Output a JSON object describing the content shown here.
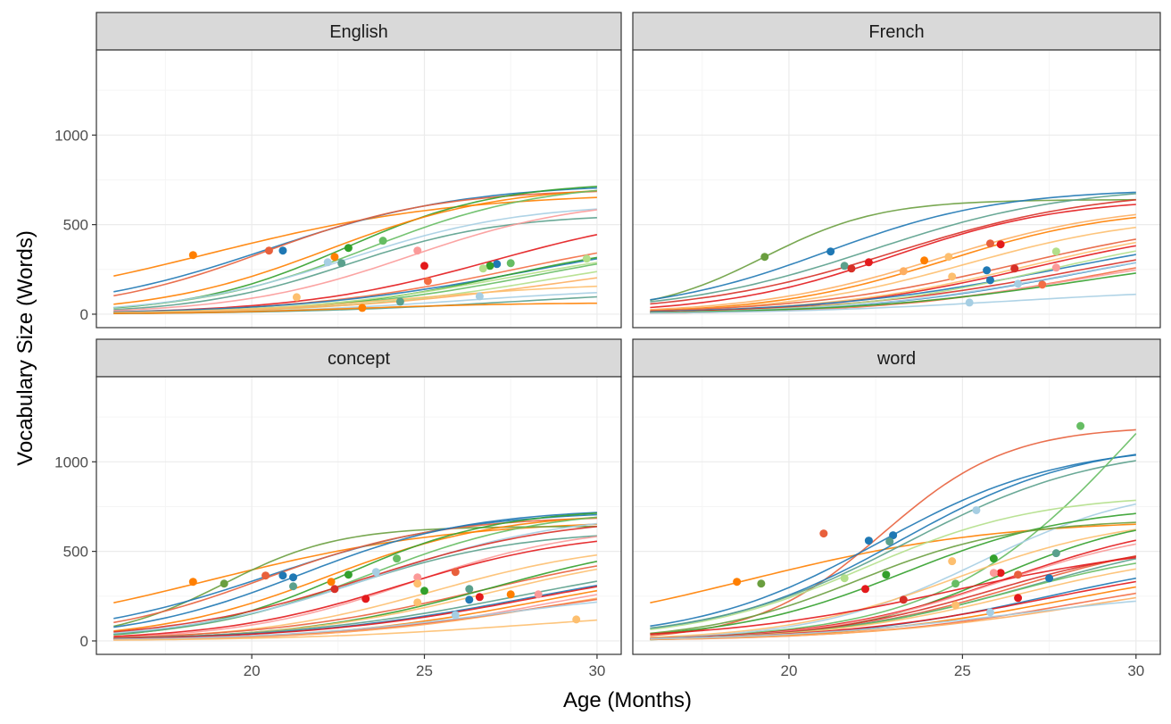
{
  "chart_data": {
    "type": "line",
    "xlabel": "Age (Months)",
    "ylabel": "Vocabulary Size (Words)",
    "xlim": [
      15.5,
      30.7
    ],
    "ylim": [
      -75,
      1475
    ],
    "xticks": [
      20,
      25,
      30
    ],
    "yticks": [
      0,
      500,
      1000
    ],
    "grid": true,
    "legend": "none",
    "colors": {
      "strip_background": "#d9d9d9",
      "panel_border": "#333333",
      "grid_major": "#ebebeb",
      "grid_minor": "#f5f5f5",
      "palette": [
        "#1f78b4",
        "#33a02c",
        "#e31a1c",
        "#ff7f00",
        "#6a9e3f",
        "#e8603c",
        "#a6cee3",
        "#b2df8a",
        "#fb9a99",
        "#fdbf6f",
        "#5aa08c",
        "#f46d43",
        "#74add1",
        "#66bd63",
        "#d73027",
        "#fdae61"
      ]
    },
    "panels": [
      {
        "strip": "English",
        "curves": [
          {
            "max": 680,
            "mid": 18.8,
            "rate": 0.28,
            "point": [
              18.3,
              330
            ],
            "color": 3
          },
          {
            "max": 730,
            "mid": 20.5,
            "rate": 0.35,
            "point": [
              20.9,
              355
            ],
            "color": 0
          },
          {
            "max": 700,
            "mid": 20.4,
            "rate": 0.4,
            "point": [
              20.5,
              355
            ],
            "color": 5
          },
          {
            "max": 740,
            "mid": 22.7,
            "rate": 0.45,
            "point": [
              22.8,
              370
            ],
            "color": 1
          },
          {
            "max": 720,
            "mid": 22.2,
            "rate": 0.4,
            "point": [
              22.4,
              320
            ],
            "color": 3
          },
          {
            "max": 740,
            "mid": 23.4,
            "rate": 0.4,
            "point": [
              23.8,
              410
            ],
            "color": 13
          },
          {
            "max": 620,
            "mid": 22.8,
            "rate": 0.4,
            "point": [
              22.2,
              290
            ],
            "color": 6
          },
          {
            "max": 560,
            "mid": 22.8,
            "rate": 0.45,
            "point": [
              22.6,
              285
            ],
            "color": 10
          },
          {
            "max": 650,
            "mid": 24.6,
            "rate": 0.4,
            "point": [
              24.8,
              355
            ],
            "color": 8
          },
          {
            "max": 600,
            "mid": 27.0,
            "rate": 0.35,
            "point": [
              25.0,
              270
            ],
            "color": 2
          },
          {
            "max": 500,
            "mid": 27.6,
            "rate": 0.32,
            "point": [
              25.1,
              185
            ],
            "color": 11
          },
          {
            "max": 480,
            "mid": 28.0,
            "rate": 0.3,
            "point": [
              27.1,
              280
            ],
            "color": 0
          },
          {
            "max": 430,
            "mid": 27.3,
            "rate": 0.38,
            "point": [
              26.9,
              270
            ],
            "color": 1
          },
          {
            "max": 420,
            "mid": 27.6,
            "rate": 0.33,
            "point": [
              26.7,
              255
            ],
            "color": 7
          },
          {
            "max": 440,
            "mid": 28.3,
            "rate": 0.33,
            "point": [
              27.5,
              285
            ],
            "color": 13
          },
          {
            "max": 400,
            "mid": 28.8,
            "rate": 0.32,
            "point": [
              29.7,
              310
            ],
            "color": 7
          },
          {
            "max": 380,
            "mid": 29.5,
            "rate": 0.28,
            "point": null,
            "color": 15
          },
          {
            "max": 180,
            "mid": 24.7,
            "rate": 0.35,
            "point": [
              21.3,
              95
            ],
            "color": 9
          },
          {
            "max": 150,
            "mid": 26.0,
            "rate": 0.35,
            "point": [
              26.6,
              100
            ],
            "color": 6
          },
          {
            "max": 150,
            "mid": 28.0,
            "rate": 0.3,
            "point": [
              24.3,
              70
            ],
            "color": 10
          },
          {
            "max": 65,
            "mid": 23.0,
            "rate": 0.4,
            "point": [
              23.2,
              35
            ],
            "color": 3
          }
        ]
      },
      {
        "strip": "French",
        "curves": [
          {
            "max": 640,
            "mid": 19.3,
            "rate": 0.6,
            "point": [
              19.3,
              320
            ],
            "color": 4
          },
          {
            "max": 700,
            "mid": 21.1,
            "rate": 0.4,
            "point": [
              21.2,
              350
            ],
            "color": 0
          },
          {
            "max": 720,
            "mid": 22.4,
            "rate": 0.35,
            "point": [
              21.6,
              270
            ],
            "color": 10
          },
          {
            "max": 700,
            "mid": 23.1,
            "rate": 0.34,
            "point": [
              21.8,
              255
            ],
            "color": 14
          },
          {
            "max": 650,
            "mid": 23.0,
            "rate": 0.4,
            "point": [
              22.3,
              290
            ],
            "color": 2
          },
          {
            "max": 620,
            "mid": 24.3,
            "rate": 0.38,
            "point": [
              23.3,
              240
            ],
            "color": 15
          },
          {
            "max": 600,
            "mid": 24.5,
            "rate": 0.4,
            "point": [
              23.9,
              300
            ],
            "color": 3
          },
          {
            "max": 560,
            "mid": 25.1,
            "rate": 0.38,
            "point": [
              24.6,
              320
            ],
            "color": 9
          },
          {
            "max": 560,
            "mid": 26.6,
            "rate": 0.32,
            "point": [
              25.8,
              395
            ],
            "color": 5
          },
          {
            "max": 520,
            "mid": 27.0,
            "rate": 0.34,
            "point": [
              26.1,
              390
            ],
            "color": 2
          },
          {
            "max": 540,
            "mid": 26.9,
            "rate": 0.34,
            "point": [
              24.7,
              210
            ],
            "color": 9
          },
          {
            "max": 500,
            "mid": 27.7,
            "rate": 0.3,
            "point": [
              25.7,
              245
            ],
            "color": 0
          },
          {
            "max": 480,
            "mid": 28.2,
            "rate": 0.3,
            "point": [
              26.5,
              255
            ],
            "color": 14
          },
          {
            "max": 500,
            "mid": 27.5,
            "rate": 0.35,
            "point": [
              27.7,
              350
            ],
            "color": 7
          },
          {
            "max": 460,
            "mid": 28.4,
            "rate": 0.32,
            "point": [
              25.8,
              190
            ],
            "color": 0
          },
          {
            "max": 450,
            "mid": 28.2,
            "rate": 0.32,
            "point": [
              26.6,
              170
            ],
            "color": 6
          },
          {
            "max": 420,
            "mid": 28.6,
            "rate": 0.34,
            "point": [
              27.3,
              165
            ],
            "color": 11
          },
          {
            "max": 400,
            "mid": 28.5,
            "rate": 0.32,
            "point": [
              27.7,
              260
            ],
            "color": 8
          },
          {
            "max": 380,
            "mid": 28.6,
            "rate": 0.3,
            "point": null,
            "color": 1
          },
          {
            "max": 150,
            "mid": 26.5,
            "rate": 0.3,
            "point": [
              25.2,
              65
            ],
            "color": 6
          }
        ]
      },
      {
        "strip": "concept",
        "curves": [
          {
            "max": 680,
            "mid": 18.8,
            "rate": 0.28,
            "point": [
              18.3,
              330
            ],
            "color": 3
          },
          {
            "max": 640,
            "mid": 19.2,
            "rate": 0.6,
            "point": [
              19.2,
              320
            ],
            "color": 4
          },
          {
            "max": 730,
            "mid": 20.5,
            "rate": 0.35,
            "point": [
              20.9,
              365
            ],
            "color": 0
          },
          {
            "max": 700,
            "mid": 20.4,
            "rate": 0.4,
            "point": [
              20.4,
              365
            ],
            "color": 5
          },
          {
            "max": 740,
            "mid": 21.4,
            "rate": 0.4,
            "point": [
              21.2,
              355
            ],
            "color": 0
          },
          {
            "max": 720,
            "mid": 22.2,
            "rate": 0.4,
            "point": [
              22.3,
              330
            ],
            "color": 3
          },
          {
            "max": 740,
            "mid": 22.7,
            "rate": 0.45,
            "point": [
              22.8,
              370
            ],
            "color": 1
          },
          {
            "max": 740,
            "mid": 23.4,
            "rate": 0.4,
            "point": [
              24.2,
              460
            ],
            "color": 13
          },
          {
            "max": 620,
            "mid": 22.8,
            "rate": 0.4,
            "point": [
              21.2,
              305
            ],
            "color": 10
          },
          {
            "max": 720,
            "mid": 23.6,
            "rate": 0.36,
            "point": [
              23.6,
              385
            ],
            "color": 6
          },
          {
            "max": 700,
            "mid": 23.3,
            "rate": 0.35,
            "point": [
              22.4,
              290
            ],
            "color": 14
          },
          {
            "max": 650,
            "mid": 24.6,
            "rate": 0.4,
            "point": [
              24.8,
              355
            ],
            "color": 8
          },
          {
            "max": 620,
            "mid": 24.3,
            "rate": 0.38,
            "point": [
              23.3,
              235
            ],
            "color": 2
          },
          {
            "max": 560,
            "mid": 25.3,
            "rate": 0.38,
            "point": [
              24.8,
              320
            ],
            "color": 9
          },
          {
            "max": 560,
            "mid": 26.6,
            "rate": 0.32,
            "point": [
              25.9,
              385
            ],
            "color": 5
          },
          {
            "max": 600,
            "mid": 27.0,
            "rate": 0.35,
            "point": [
              25.0,
              280
            ],
            "color": 1
          },
          {
            "max": 540,
            "mid": 26.9,
            "rate": 0.34,
            "point": [
              24.8,
              215
            ],
            "color": 9
          },
          {
            "max": 500,
            "mid": 27.7,
            "rate": 0.3,
            "point": [
              26.3,
              290
            ],
            "color": 10
          },
          {
            "max": 480,
            "mid": 28.0,
            "rate": 0.3,
            "point": [
              26.3,
              230
            ],
            "color": 0
          },
          {
            "max": 480,
            "mid": 28.2,
            "rate": 0.3,
            "point": [
              26.6,
              245
            ],
            "color": 2
          },
          {
            "max": 440,
            "mid": 28.3,
            "rate": 0.33,
            "point": [
              27.5,
              260
            ],
            "color": 3
          },
          {
            "max": 420,
            "mid": 28.6,
            "rate": 0.34,
            "point": [
              28.3,
              260
            ],
            "color": 8
          },
          {
            "max": 400,
            "mid": 28.8,
            "rate": 0.32,
            "point": null,
            "color": 15
          },
          {
            "max": 380,
            "mid": 28.5,
            "rate": 0.3,
            "point": null,
            "color": 11
          },
          {
            "max": 300,
            "mid": 27.0,
            "rate": 0.32,
            "point": [
              25.9,
              145
            ],
            "color": 6
          },
          {
            "max": 180,
            "mid": 28.0,
            "rate": 0.3,
            "point": [
              29.4,
              120
            ],
            "color": 9
          }
        ]
      },
      {
        "strip": "word",
        "curves": [
          {
            "max": 680,
            "mid": 18.8,
            "rate": 0.28,
            "point": [
              18.5,
              330
            ],
            "color": 3
          },
          {
            "max": 1200,
            "mid": 22.7,
            "rate": 0.55,
            "point": [
              21.0,
              600
            ],
            "color": 5
          },
          {
            "max": 1100,
            "mid": 22.6,
            "rate": 0.38,
            "point": [
              22.3,
              560
            ],
            "color": 0
          },
          {
            "max": 1120,
            "mid": 23.2,
            "rate": 0.38,
            "point": [
              23.0,
              590
            ],
            "color": 0
          },
          {
            "max": 1100,
            "mid": 23.4,
            "rate": 0.36,
            "point": [
              22.9,
              555
            ],
            "color": 10
          },
          {
            "max": 2400,
            "mid": 30.2,
            "rate": 0.35,
            "point": [
              28.4,
              1200
            ],
            "color": 13
          },
          {
            "max": 880,
            "mid": 25.5,
            "rate": 0.42,
            "point": [
              25.4,
              730
            ],
            "color": 6
          },
          {
            "max": 820,
            "mid": 22.2,
            "rate": 0.4,
            "point": [
              21.6,
              350
            ],
            "color": 7
          },
          {
            "max": 760,
            "mid": 23.3,
            "rate": 0.4,
            "point": [
              22.8,
              370
            ],
            "color": 1
          },
          {
            "max": 680,
            "mid": 22.0,
            "rate": 0.45,
            "point": [
              19.2,
              320
            ],
            "color": 4
          },
          {
            "max": 700,
            "mid": 24.8,
            "rate": 0.4,
            "point": [
              24.7,
              445
            ],
            "color": 9
          },
          {
            "max": 720,
            "mid": 26.0,
            "rate": 0.45,
            "point": [
              25.9,
              460
            ],
            "color": 1
          },
          {
            "max": 700,
            "mid": 26.3,
            "rate": 0.38,
            "point": [
              26.1,
              380
            ],
            "color": 2
          },
          {
            "max": 650,
            "mid": 26.0,
            "rate": 0.4,
            "point": [
              25.9,
              380
            ],
            "color": 8
          },
          {
            "max": 600,
            "mid": 26.5,
            "rate": 0.38,
            "point": [
              26.6,
              370
            ],
            "color": 5
          },
          {
            "max": 620,
            "mid": 27.0,
            "rate": 0.35,
            "point": [
              27.7,
              490
            ],
            "color": 10
          },
          {
            "max": 560,
            "mid": 25.8,
            "rate": 0.4,
            "point": [
              23.3,
              230
            ],
            "color": 14
          },
          {
            "max": 540,
            "mid": 26.3,
            "rate": 0.38,
            "point": [
              24.8,
              320
            ],
            "color": 13
          },
          {
            "max": 520,
            "mid": 26.6,
            "rate": 0.36,
            "point": [
              24.8,
              200
            ],
            "color": 9
          },
          {
            "max": 500,
            "mid": 27.5,
            "rate": 0.34,
            "point": [
              27.5,
              350
            ],
            "color": 0
          },
          {
            "max": 480,
            "mid": 27.5,
            "rate": 0.32,
            "point": [
              26.6,
              240
            ],
            "color": 2
          },
          {
            "max": 460,
            "mid": 28.0,
            "rate": 0.32,
            "point": null,
            "color": 3
          },
          {
            "max": 420,
            "mid": 28.3,
            "rate": 0.32,
            "point": null,
            "color": 11
          },
          {
            "max": 400,
            "mid": 28.6,
            "rate": 0.3,
            "point": null,
            "color": 15
          },
          {
            "max": 300,
            "mid": 26.5,
            "rate": 0.3,
            "point": [
              25.8,
              160
            ],
            "color": 6
          },
          {
            "max": 560,
            "mid": 24.7,
            "rate": 0.3,
            "point": [
              22.2,
              290
            ],
            "color": 2
          }
        ]
      }
    ]
  }
}
